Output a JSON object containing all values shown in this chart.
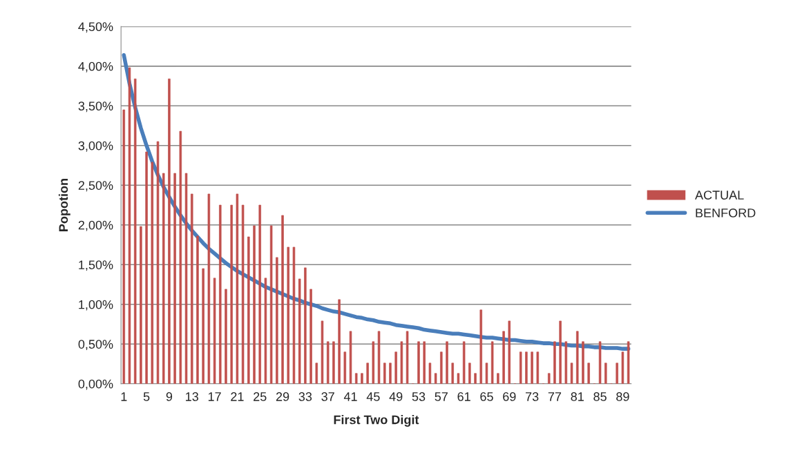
{
  "chart_data": {
    "type": "bar",
    "xlabel": "First Two Digit",
    "ylabel": "Popotion",
    "categories": [
      "1",
      null,
      null,
      null,
      "5",
      null,
      null,
      null,
      "9",
      null,
      null,
      null,
      "13",
      null,
      null,
      null,
      "17",
      null,
      null,
      null,
      "21",
      null,
      null,
      null,
      "25",
      null,
      null,
      null,
      "29",
      null,
      null,
      null,
      "33",
      null,
      null,
      null,
      "37",
      null,
      null,
      null,
      "41",
      null,
      null,
      null,
      "45",
      null,
      null,
      null,
      "49",
      null,
      null,
      null,
      "53",
      null,
      null,
      null,
      "57",
      null,
      null,
      null,
      "61",
      null,
      null,
      null,
      "65",
      null,
      null,
      null,
      "69",
      null,
      null,
      null,
      "73",
      null,
      null,
      null,
      "77",
      null,
      null,
      null,
      "81",
      null,
      null,
      null,
      "85",
      null,
      null,
      null,
      "89",
      null
    ],
    "series": [
      {
        "name": "ACTUAL",
        "color": "#c0504d",
        "values": [
          3.45,
          3.98,
          3.84,
          1.98,
          2.92,
          2.79,
          3.05,
          2.65,
          3.84,
          2.65,
          3.18,
          2.65,
          2.39,
          1.86,
          1.45,
          2.39,
          1.33,
          2.25,
          1.19,
          2.25,
          2.39,
          2.25,
          1.85,
          1.99,
          2.25,
          1.33,
          1.99,
          1.59,
          2.12,
          1.72,
          1.72,
          1.32,
          1.46,
          1.19,
          0.26,
          0.79,
          0.53,
          0.53,
          1.06,
          0.4,
          0.66,
          0.13,
          0.13,
          0.26,
          0.53,
          0.66,
          0.26,
          0.26,
          0.4,
          0.53,
          0.66,
          0,
          0.53,
          0.53,
          0.26,
          0.13,
          0.4,
          0.53,
          0.26,
          0.13,
          0.53,
          0.26,
          0.13,
          0.93,
          0.26,
          0.53,
          0.13,
          0.66,
          0.79,
          0,
          0.4,
          0.4,
          0.4,
          0.4,
          0,
          0.13,
          0.53,
          0.79,
          0.53,
          0.26,
          0.66,
          0.53,
          0.26,
          0,
          0.53,
          0.26,
          0,
          0.26,
          0.4,
          0.53
        ]
      },
      {
        "name": "BENFORD",
        "type": "line",
        "color": "#4a7ebb",
        "values": [
          4.14,
          3.78,
          3.48,
          3.22,
          3.0,
          2.8,
          2.63,
          2.48,
          2.35,
          2.23,
          2.12,
          2.02,
          1.93,
          1.85,
          1.77,
          1.7,
          1.64,
          1.58,
          1.52,
          1.47,
          1.42,
          1.38,
          1.34,
          1.3,
          1.26,
          1.22,
          1.19,
          1.16,
          1.13,
          1.1,
          1.07,
          1.05,
          1.02,
          1.0,
          0.98,
          0.95,
          0.93,
          0.91,
          0.9,
          0.88,
          0.86,
          0.84,
          0.83,
          0.81,
          0.8,
          0.78,
          0.77,
          0.76,
          0.74,
          0.73,
          0.72,
          0.71,
          0.7,
          0.68,
          0.67,
          0.66,
          0.65,
          0.64,
          0.63,
          0.63,
          0.62,
          0.61,
          0.6,
          0.59,
          0.58,
          0.58,
          0.57,
          0.56,
          0.55,
          0.55,
          0.54,
          0.53,
          0.53,
          0.52,
          0.51,
          0.51,
          0.5,
          0.5,
          0.49,
          0.48,
          0.48,
          0.47,
          0.47,
          0.46,
          0.46,
          0.45,
          0.45,
          0.45,
          0.44,
          0.44
        ]
      }
    ],
    "ylim": [
      0,
      4.5
    ],
    "yticks": [
      {
        "value": 0,
        "label": "0,00%"
      },
      {
        "value": 0.5,
        "label": "0,50%"
      },
      {
        "value": 1,
        "label": "1,00%"
      },
      {
        "value": 1.5,
        "label": "1,50%"
      },
      {
        "value": 2,
        "label": "2,00%"
      },
      {
        "value": 2.5,
        "label": "2,50%"
      },
      {
        "value": 3,
        "label": "3,00%"
      },
      {
        "value": 3.5,
        "label": "3,50%"
      },
      {
        "value": 4,
        "label": "4,00%"
      },
      {
        "value": 4.5,
        "label": "4,50%"
      }
    ],
    "grid": "y",
    "legend": "right",
    "marker": "none",
    "line_style": "solid"
  }
}
